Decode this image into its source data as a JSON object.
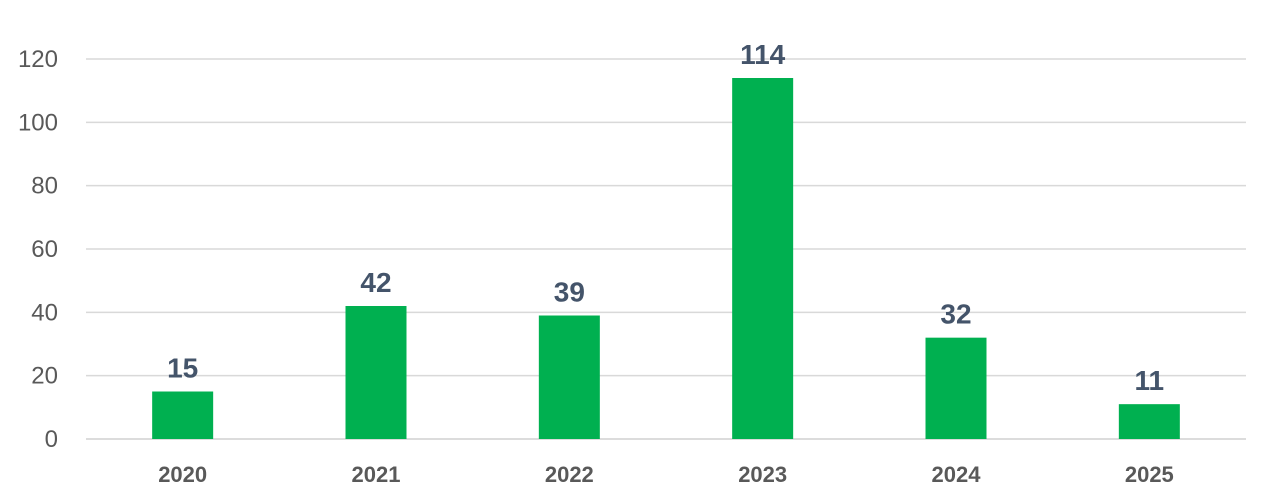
{
  "chart_data": {
    "type": "bar",
    "title": "",
    "xlabel": "",
    "ylabel": "",
    "categories": [
      "2020",
      "2021",
      "2022",
      "2023",
      "2024",
      "2025"
    ],
    "values": [
      15,
      42,
      39,
      114,
      32,
      11
    ],
    "ylim": [
      0,
      120
    ],
    "yticks": [
      0,
      20,
      40,
      60,
      80,
      100,
      120
    ],
    "data_labels": [
      "15",
      "42",
      "39",
      "114",
      "32",
      "11"
    ],
    "grid": true,
    "legend": "none",
    "colors": {
      "bar": "#00b050",
      "data_label": "#44546a",
      "tick_label": "#595959",
      "gridline": "#d9d9d9"
    }
  }
}
